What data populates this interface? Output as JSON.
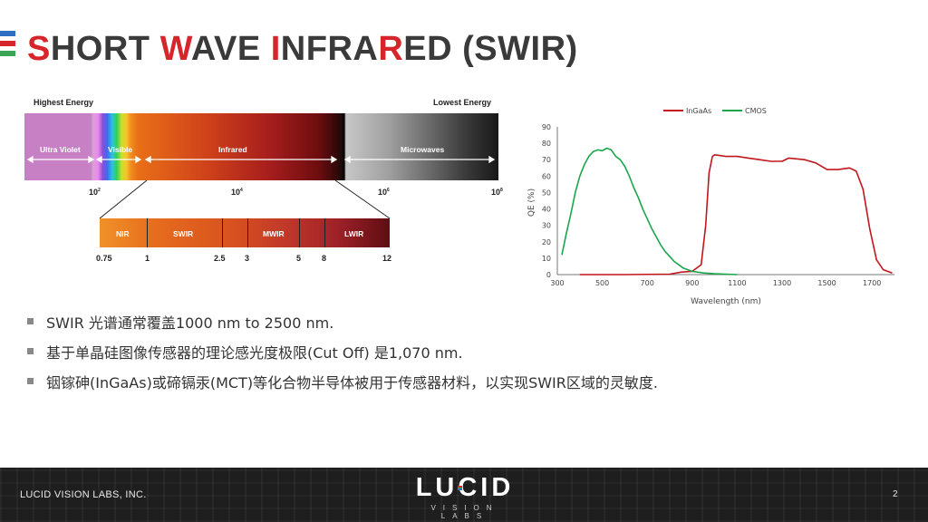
{
  "slide": {
    "title_segments": [
      {
        "text": "S",
        "red": true
      },
      {
        "text": "HORT ",
        "red": false
      },
      {
        "text": "W",
        "red": true
      },
      {
        "text": "AVE ",
        "red": false
      },
      {
        "text": "I",
        "red": true
      },
      {
        "text": "NFRA",
        "red": false
      },
      {
        "text": "R",
        "red": true
      },
      {
        "text": "ED (SWIR)",
        "red": false
      }
    ],
    "stripe_colors": [
      "#2f6fc2",
      "#d7262b",
      "#3aa655"
    ],
    "accent_color": "#d7262b"
  },
  "spectrum": {
    "highest_energy": "Highest Energy",
    "lowest_energy": "Lowest Energy",
    "bands": [
      "Ultra Violet",
      "Visible",
      "Infrared",
      "Microwaves"
    ],
    "ticks": [
      {
        "base": "10",
        "exp": "2"
      },
      {
        "base": "10",
        "exp": "4"
      },
      {
        "base": "10",
        "exp": "6"
      },
      {
        "base": "10",
        "exp": "8"
      }
    ],
    "sub_bands": [
      "NIR",
      "SWIR",
      "MWIR",
      "LWIR"
    ],
    "sub_ticks": [
      "0.75",
      "1",
      "2.5",
      "3",
      "5",
      "8",
      "12"
    ]
  },
  "chart_data": {
    "type": "line",
    "xlabel": "Wavelength (nm)",
    "ylabel": "QE (%)",
    "xlim": [
      300,
      1800
    ],
    "ylim": [
      0,
      90
    ],
    "xticks": [
      300,
      500,
      700,
      900,
      1100,
      1300,
      1500,
      1700
    ],
    "yticks": [
      0,
      10,
      20,
      30,
      40,
      50,
      60,
      70,
      80,
      90
    ],
    "legend": "top",
    "series": [
      {
        "name": "InGaAs",
        "color": "#c0161c",
        "points": [
          [
            400,
            0
          ],
          [
            600,
            0
          ],
          [
            800,
            0.3
          ],
          [
            850,
            1.5
          ],
          [
            900,
            2
          ],
          [
            940,
            6
          ],
          [
            960,
            30
          ],
          [
            975,
            62
          ],
          [
            990,
            72
          ],
          [
            1000,
            73
          ],
          [
            1050,
            72
          ],
          [
            1100,
            72
          ],
          [
            1150,
            71
          ],
          [
            1200,
            70
          ],
          [
            1250,
            69
          ],
          [
            1300,
            69
          ],
          [
            1330,
            71
          ],
          [
            1400,
            70
          ],
          [
            1450,
            68
          ],
          [
            1500,
            64
          ],
          [
            1550,
            64
          ],
          [
            1600,
            65
          ],
          [
            1630,
            63
          ],
          [
            1660,
            52
          ],
          [
            1690,
            28
          ],
          [
            1720,
            9
          ],
          [
            1750,
            3
          ],
          [
            1790,
            1
          ]
        ]
      },
      {
        "name": "CMOS",
        "color": "#1aa64b",
        "points": [
          [
            320,
            12
          ],
          [
            340,
            25
          ],
          [
            360,
            37
          ],
          [
            380,
            50
          ],
          [
            400,
            60
          ],
          [
            420,
            67
          ],
          [
            440,
            72
          ],
          [
            460,
            75
          ],
          [
            480,
            76
          ],
          [
            500,
            75.5
          ],
          [
            520,
            77
          ],
          [
            540,
            76
          ],
          [
            560,
            72
          ],
          [
            580,
            70
          ],
          [
            600,
            66
          ],
          [
            620,
            60
          ],
          [
            640,
            53
          ],
          [
            660,
            47
          ],
          [
            680,
            40
          ],
          [
            700,
            34
          ],
          [
            720,
            28
          ],
          [
            740,
            23
          ],
          [
            760,
            18
          ],
          [
            780,
            14
          ],
          [
            800,
            11
          ],
          [
            820,
            8
          ],
          [
            840,
            6
          ],
          [
            860,
            4
          ],
          [
            880,
            3
          ],
          [
            900,
            2
          ],
          [
            950,
            1
          ],
          [
            1000,
            0.5
          ],
          [
            1100,
            0
          ]
        ]
      }
    ]
  },
  "bullets": [
    "SWIR 光谱通常覆盖1000 nm to 2500 nm.",
    "基于单晶硅图像传感器的理论感光度极限(Cut Off) 是1,070 nm.",
    "铟镓砷(InGaAs)或碲镉汞(MCT)等化合物半导体被用于传感器材料，以实现SWIR区域的灵敏度."
  ],
  "footer": {
    "company": "LUCID VISION LABS, INC.",
    "logo_word": "LUCID",
    "logo_sub": "VISION LABS",
    "page_number": "2",
    "logo_dot_colors": [
      "#d7262b",
      "#3aa655",
      "#2f6fc2"
    ]
  }
}
